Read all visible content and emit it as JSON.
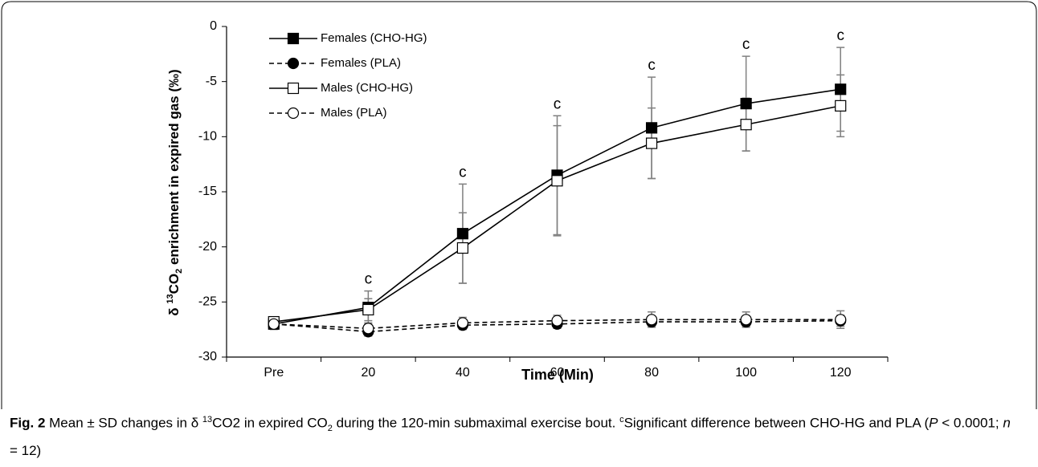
{
  "chart_data": {
    "type": "line",
    "x_label": "Time (Min)",
    "y_label": {
      "prefix": "δ ",
      "superscript": "13",
      "main": "CO",
      "subscript": "2",
      "suffix": " enrichment in expired gas (‰)"
    },
    "categories": [
      "Pre",
      "20",
      "40",
      "60",
      "80",
      "100",
      "120"
    ],
    "ylim": [
      -30,
      0
    ],
    "yticks": [
      -30,
      -25,
      -20,
      -15,
      -10,
      -5,
      0
    ],
    "error_color": "#808080",
    "legend": "top-left",
    "series": [
      {
        "name": "Females (CHO-HG)",
        "color": "#000000",
        "marker": "square",
        "filled": true,
        "dashed": false,
        "values": [
          -27.0,
          -25.5,
          -18.8,
          -13.5,
          -9.2,
          -7.0,
          -5.7
        ],
        "errors": [
          0.3,
          1.5,
          4.5,
          5.4,
          4.6,
          4.3,
          3.8
        ]
      },
      {
        "name": "Females (PLA)",
        "color": "#000000",
        "marker": "circle",
        "filled": true,
        "dashed": true,
        "values": [
          -27.0,
          -27.7,
          -27.1,
          -27.0,
          -26.8,
          -26.8,
          -26.7
        ],
        "errors": [
          0.4,
          0.4,
          0.4,
          0.4,
          0.4,
          0.4,
          0.5
        ]
      },
      {
        "name": "Males (CHO-HG)",
        "color": "#000000",
        "marker": "square",
        "filled": false,
        "dashed": false,
        "values": [
          -26.8,
          -25.7,
          -20.1,
          -14.0,
          -10.6,
          -8.9,
          -7.2
        ],
        "errors": [
          0.3,
          1.0,
          3.2,
          5.0,
          3.2,
          2.4,
          2.8
        ]
      },
      {
        "name": "Males (PLA)",
        "color": "#000000",
        "marker": "circle",
        "filled": false,
        "dashed": true,
        "values": [
          -27.0,
          -27.4,
          -26.9,
          -26.7,
          -26.6,
          -26.6,
          -26.6
        ],
        "errors": [
          0.5,
          0.5,
          0.5,
          0.5,
          0.7,
          0.7,
          0.8
        ]
      }
    ],
    "annotations": [
      {
        "text": "c",
        "x": "20"
      },
      {
        "text": "c",
        "x": "40"
      },
      {
        "text": "c",
        "x": "60"
      },
      {
        "text": "c",
        "x": "80"
      },
      {
        "text": "c",
        "x": "100"
      },
      {
        "text": "c",
        "x": "120"
      }
    ]
  },
  "caption": {
    "runs": [
      {
        "text": "Fig. 2",
        "style": "bold"
      },
      {
        "text": " Mean ± SD changes in δ ",
        "style": "normal"
      },
      {
        "text": "13",
        "style": "superscript"
      },
      {
        "text": "CO2 in expired CO",
        "style": "normal"
      },
      {
        "text": "2",
        "style": "subscript"
      },
      {
        "text": " during the 120-min submaximal exercise bout. ",
        "style": "normal"
      },
      {
        "text": "c",
        "style": "superscript"
      },
      {
        "text": "Significant difference between CHO-HG and PLA (",
        "style": "normal"
      },
      {
        "text": "P",
        "style": "italic"
      },
      {
        "text": " < 0.0001; ",
        "style": "normal"
      },
      {
        "text": "n",
        "style": "italic"
      },
      {
        "text": " = 12)",
        "style": "normal"
      }
    ]
  }
}
